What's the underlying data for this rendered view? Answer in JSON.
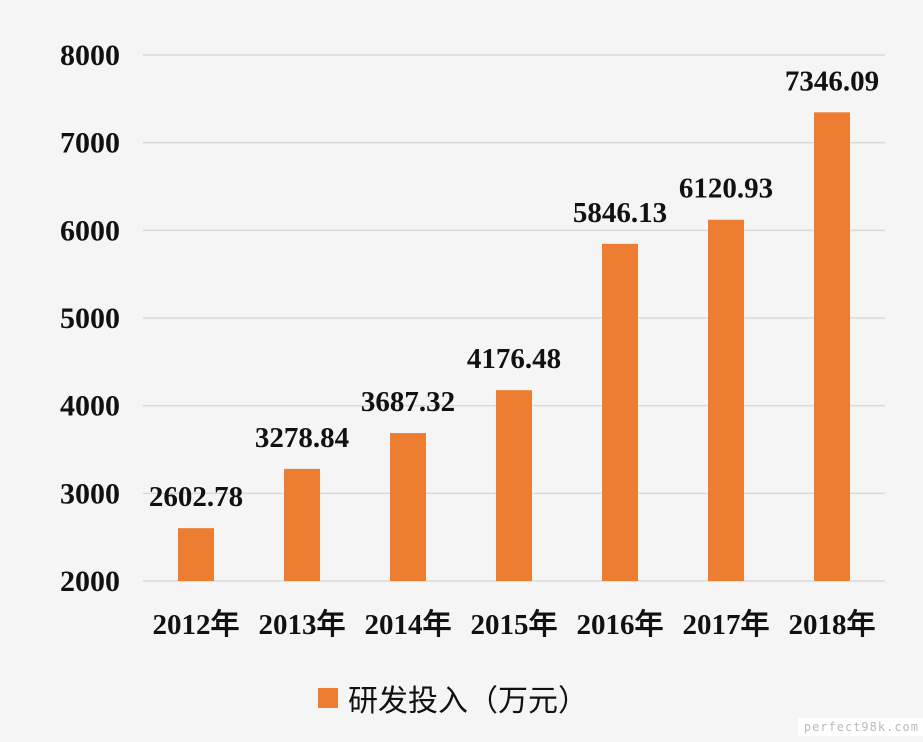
{
  "chart_data": {
    "type": "bar",
    "categories": [
      "2012年",
      "2013年",
      "2014年",
      "2015年",
      "2016年",
      "2017年",
      "2018年"
    ],
    "series": [
      {
        "name": "研发投入（万元）",
        "values": [
          2602.78,
          3278.84,
          3687.32,
          4176.48,
          5846.13,
          6120.93,
          7346.09
        ]
      }
    ],
    "value_labels": [
      "2602.78",
      "3278.84",
      "3687.32",
      "4176.48",
      "5846.13",
      "6120.93",
      "7346.09"
    ],
    "ylim": [
      2000,
      8000
    ],
    "y_ticks": [
      "2000",
      "3000",
      "4000",
      "5000",
      "6000",
      "7000",
      "8000"
    ],
    "grid": true,
    "legend_position": "bottom",
    "colors": {
      "bar": "#ed7d31",
      "grid": "#d9d9d9",
      "background": "#f5f5f5"
    }
  },
  "watermark": "perfect98k.com"
}
